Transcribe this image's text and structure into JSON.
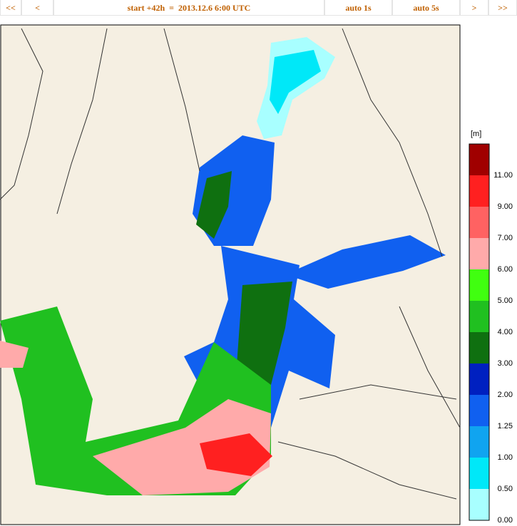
{
  "toolbar": {
    "buttons": [
      "<<",
      "<",
      "start +42h  =  2013.12.6 6:00 UTC",
      "auto 1s",
      "auto 5s",
      ">",
      ">>"
    ]
  },
  "legend": {
    "unit": "[m]",
    "entries": [
      {
        "label": "11.00",
        "color": "#a00000"
      },
      {
        "label": "9.00",
        "color": "#ff2020"
      },
      {
        "label": "7.00",
        "color": "#ff6262"
      },
      {
        "label": "6.00",
        "color": "#ffaaaa"
      },
      {
        "label": "5.00",
        "color": "#40ff10"
      },
      {
        "label": "4.00",
        "color": "#20c020"
      },
      {
        "label": "3.00",
        "color": "#0f7010"
      },
      {
        "label": "2.00",
        "color": "#0020c0"
      },
      {
        "label": "1.25",
        "color": "#1060f0"
      },
      {
        "label": "1.00",
        "color": "#10a4f0"
      },
      {
        "label": "0.50",
        "color": "#00e8f8"
      },
      {
        "label": "0.00",
        "color": "#a8ffff"
      }
    ]
  }
}
